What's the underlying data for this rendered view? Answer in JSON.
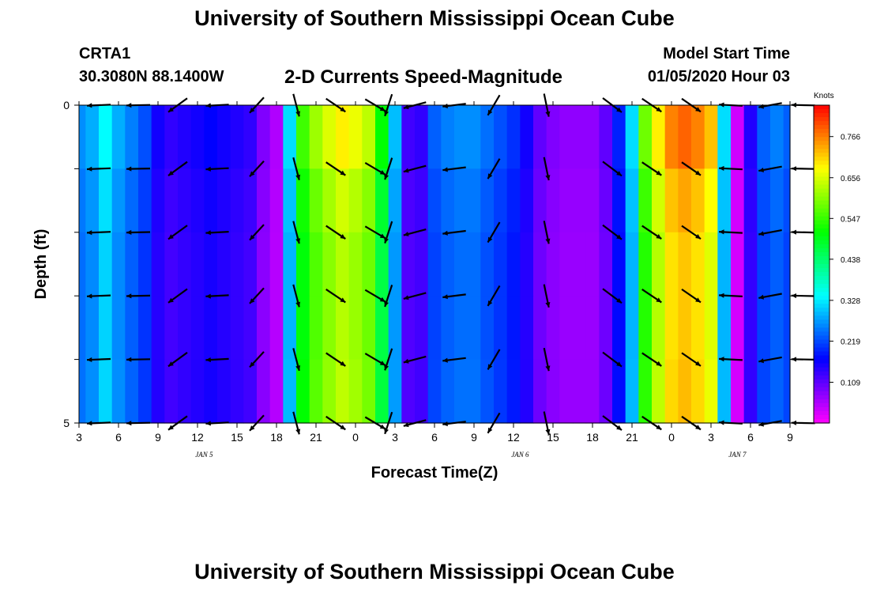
{
  "header": {
    "title_top": "University of Southern Mississippi Ocean Cube",
    "station": "CRTA1",
    "coords": "30.3080N 88.1400W",
    "subtitle": "2-D Currents Speed-Magnitude",
    "model_start_label": "Model Start Time",
    "model_start_value": "01/05/2020 Hour 03",
    "title_bottom": "University of Southern Mississippi Ocean Cube"
  },
  "chart_data": {
    "type": "heatmap",
    "title": "2-D Currents Speed-Magnitude",
    "xlabel": "Forecast Time(Z)",
    "ylabel": "Depth (ft)",
    "colorbar_title": "Knots",
    "x_tick_labels": [
      "3",
      "6",
      "9",
      "12",
      "15",
      "18",
      "21",
      "0",
      "3",
      "6",
      "9",
      "12",
      "15",
      "18",
      "21",
      "0",
      "3",
      "6",
      "9"
    ],
    "date_labels": [
      {
        "label": "JAN 5",
        "hour_index": 9.5
      },
      {
        "label": "JAN 6",
        "hour_index": 33.5
      },
      {
        "label": "JAN 7",
        "hour_index": 50
      }
    ],
    "x_hours": [
      0,
      54
    ],
    "y_ticks": [
      {
        "value": 0,
        "label": "0"
      },
      {
        "value": 5,
        "label": "5"
      }
    ],
    "y_range": [
      0,
      5
    ],
    "colorbar_ticks": [
      "0.109",
      "0.219",
      "0.328",
      "0.438",
      "0.547",
      "0.656",
      "0.766"
    ],
    "colorbar_range": [
      0,
      0.85
    ],
    "speed_profile_knots": [
      0.25,
      0.27,
      0.32,
      0.27,
      0.24,
      0.21,
      0.15,
      0.13,
      0.14,
      0.15,
      0.16,
      0.15,
      0.14,
      0.13,
      0.08,
      0.05,
      0.3,
      0.52,
      0.58,
      0.62,
      0.65,
      0.63,
      0.6,
      0.48,
      0.28,
      0.12,
      0.13,
      0.22,
      0.24,
      0.25,
      0.25,
      0.23,
      0.21,
      0.19,
      0.15,
      0.1,
      0.08,
      0.07,
      0.07,
      0.07,
      0.1,
      0.18,
      0.3,
      0.55,
      0.65,
      0.72,
      0.74,
      0.72,
      0.68,
      0.3,
      0.03,
      0.14,
      0.22,
      0.24,
      0.22
    ],
    "depth_factor": [
      1.06,
      1.0,
      0.97,
      0.97,
      0.98
    ],
    "arrow_columns": [
      {
        "hour": 1.5,
        "dir": [
          -1.0,
          0.04
        ]
      },
      {
        "hour": 4.5,
        "dir": [
          -1.0,
          0.02
        ]
      },
      {
        "hour": 7.5,
        "dir": [
          -0.8,
          0.58
        ]
      },
      {
        "hour": 10.5,
        "dir": [
          -0.97,
          0.05
        ]
      },
      {
        "hour": 13.5,
        "dir": [
          -0.6,
          0.65
        ]
      },
      {
        "hour": 16.5,
        "dir": [
          0.25,
          0.95
        ]
      },
      {
        "hour": 19.5,
        "dir": [
          0.82,
          0.55
        ]
      },
      {
        "hour": 22.5,
        "dir": [
          0.85,
          0.5
        ]
      },
      {
        "hour": 23.5,
        "dir": [
          -0.3,
          0.92
        ]
      },
      {
        "hour": 25.5,
        "dir": [
          -0.95,
          0.25
        ]
      },
      {
        "hour": 28.5,
        "dir": [
          -0.98,
          0.12
        ]
      },
      {
        "hour": 31.5,
        "dir": [
          -0.5,
          0.85
        ]
      },
      {
        "hour": 35.5,
        "dir": [
          0.2,
          0.97
        ]
      },
      {
        "hour": 40.5,
        "dir": [
          0.8,
          0.6
        ]
      },
      {
        "hour": 43.5,
        "dir": [
          0.82,
          0.55
        ]
      },
      {
        "hour": 46.5,
        "dir": [
          0.8,
          0.55
        ]
      },
      {
        "hour": 49.5,
        "dir": [
          -0.99,
          -0.05
        ]
      },
      {
        "hour": 52.5,
        "dir": [
          -0.98,
          0.18
        ]
      },
      {
        "hour": 55.0,
        "dir": [
          -1.0,
          -0.02
        ]
      }
    ]
  }
}
